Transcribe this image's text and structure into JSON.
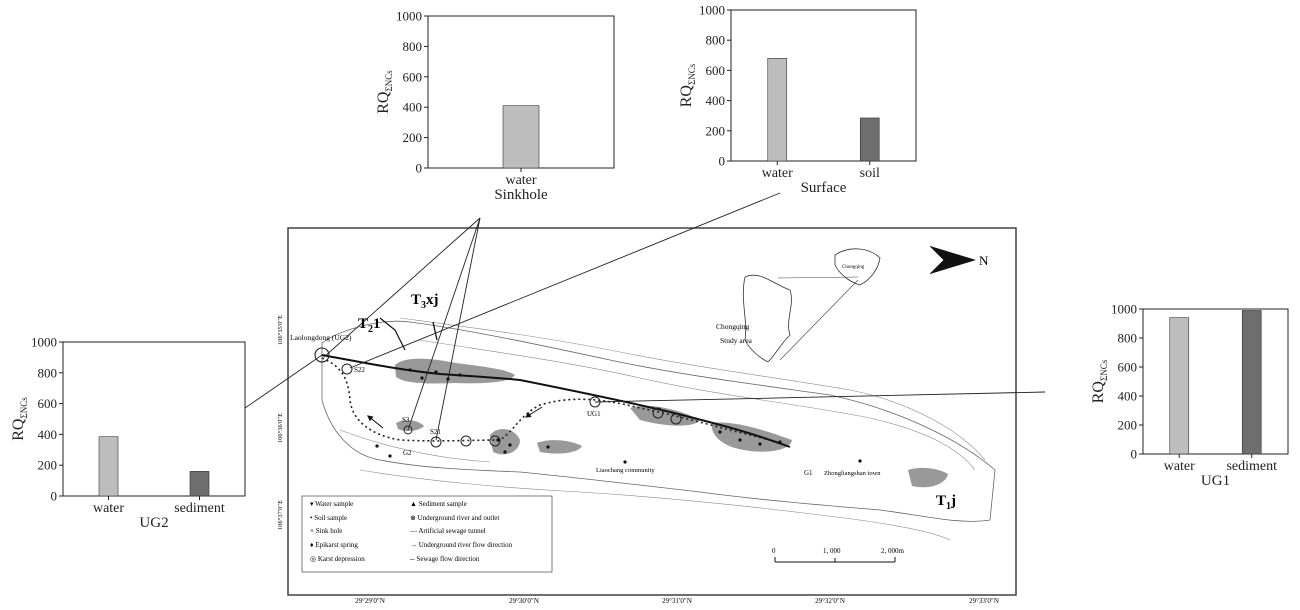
{
  "chart_data": [
    {
      "id": "sinkhole",
      "type": "bar",
      "title": "Sinkhole",
      "ylabel_main": "RQ",
      "ylabel_sub": "ΣNCs",
      "categories": [
        "water"
      ],
      "values": [
        410
      ],
      "ylim": [
        0,
        1000
      ],
      "yticks": [
        "0",
        "200",
        "400",
        "600",
        "800",
        "1000"
      ],
      "colors": [
        "#bdbdbd"
      ]
    },
    {
      "id": "surface",
      "type": "bar",
      "title": "Surface",
      "ylabel_main": "RQ",
      "ylabel_sub": "ΣNCs",
      "categories": [
        "water",
        "soil"
      ],
      "values": [
        680,
        285
      ],
      "ylim": [
        0,
        1000
      ],
      "yticks": [
        "0",
        "200",
        "400",
        "600",
        "800",
        "1000"
      ],
      "colors": [
        "#bdbdbd",
        "#6e6e6e"
      ]
    },
    {
      "id": "ug2",
      "type": "bar",
      "title": "UG2",
      "ylabel_main": "RQ",
      "ylabel_sub": "ΣNCs",
      "categories": [
        "water",
        "sediment"
      ],
      "values": [
        385,
        160
      ],
      "ylim": [
        0,
        1000
      ],
      "yticks": [
        "0",
        "200",
        "400",
        "600",
        "800",
        "1000"
      ],
      "colors": [
        "#bdbdbd",
        "#6e6e6e"
      ]
    },
    {
      "id": "ug1",
      "type": "bar",
      "title": "UG1",
      "ylabel_main": "RQ",
      "ylabel_sub": "ΣNCs",
      "categories": [
        "water",
        "sediment"
      ],
      "values": [
        940,
        990
      ],
      "ylim": [
        0,
        1000
      ],
      "yticks": [
        "0",
        "200",
        "400",
        "600",
        "800",
        "1000"
      ],
      "colors": [
        "#bdbdbd",
        "#6e6e6e"
      ]
    }
  ],
  "map": {
    "north": "N",
    "formations": {
      "t3xj_main": "T",
      "t3xj_sub": "3",
      "t3xj_end": "xj",
      "t21_main": "T",
      "t21_sub": "2",
      "t21_end": "1",
      "t1j_main": "T",
      "t1j_sub": "1",
      "t1j_end": "j"
    },
    "place_labels": {
      "laolongdong": "Laolongdong (UG2)",
      "s22": "S22",
      "s3": "S3",
      "s21": "S21",
      "g2": "G2",
      "ug1": "UG1",
      "g1": "G1",
      "liaochang": "Liaochang community",
      "zhongliangshan": "Zhongliangshan town",
      "chongqing": "Chongqing",
      "study_area": "Study area",
      "inset_label": "Chongqing"
    },
    "lat_ticks": [
      "29°29′0″N",
      "29°30′0″N",
      "29°31′0″N",
      "29°32′0″N",
      "29°33′0″N"
    ],
    "lon_ticks": [
      "106°35′0″E",
      "106°36′0″E",
      "106°37′0″E"
    ],
    "scale": {
      "zero": "0",
      "mid": "1, 000",
      "end": "2, 000m"
    },
    "legend": {
      "left": [
        "Water sample",
        "Soil sample",
        "Sink hole",
        "Epikarst spring",
        "Karst depression"
      ],
      "right": [
        "Sediment sample",
        "Underground river and outlet",
        "Artificial sewage tunnel",
        "Underground river flow direction",
        "Sewage flow direction"
      ]
    }
  }
}
